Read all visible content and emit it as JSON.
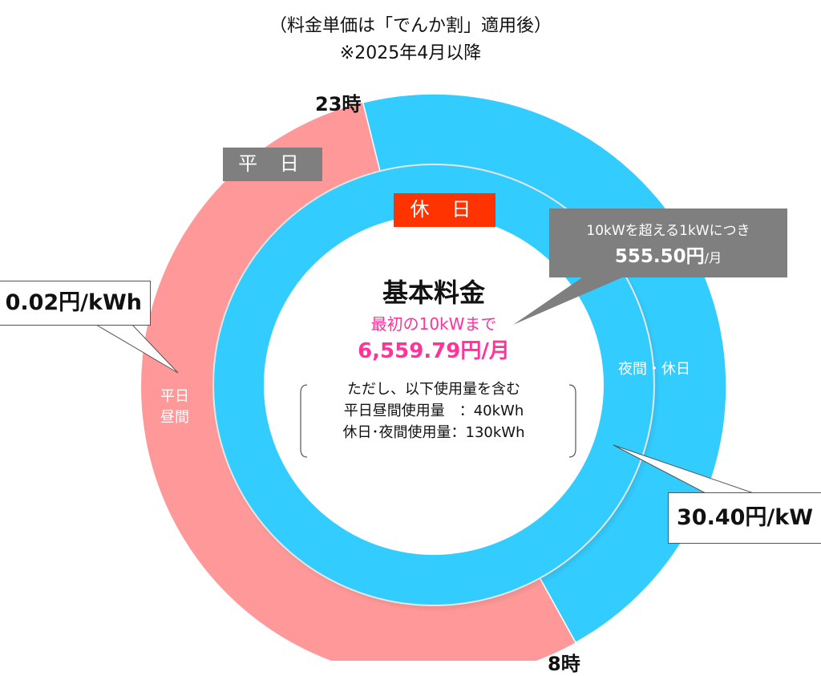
{
  "subtitle": "（料金単価は「でんか割」適用後）",
  "note": "※2025年4月以降",
  "time_labels": {
    "start_night": "23時",
    "end_night": "8時"
  },
  "rings": {
    "outer_label": "平 日",
    "inner_label": "休 日",
    "weekday_day_label_1": "平日",
    "weekday_day_label_2": "昼間",
    "night_holiday_label": "夜間・休日"
  },
  "center": {
    "title": "基本料金",
    "line1": "最初の10kWまで",
    "price": "6,559.79円/月",
    "includes": "ただし、以下使用量を含む",
    "usage_day": "平日昼間使用量　：40kWh",
    "usage_night": "休日･夜間使用量：130kWh"
  },
  "callouts": {
    "extra_line1": "10kWを超える1kWにつき",
    "extra_price": "555.50円",
    "extra_unit": "/月",
    "day_rate": "0.02円/kWh",
    "night_rate": "30.40円/kW"
  },
  "colors": {
    "pink": "#FF9999",
    "blue": "#33CCFF",
    "gray": "#7F7F7F",
    "red": "#FF3300",
    "magenta": "#FF3399"
  }
}
